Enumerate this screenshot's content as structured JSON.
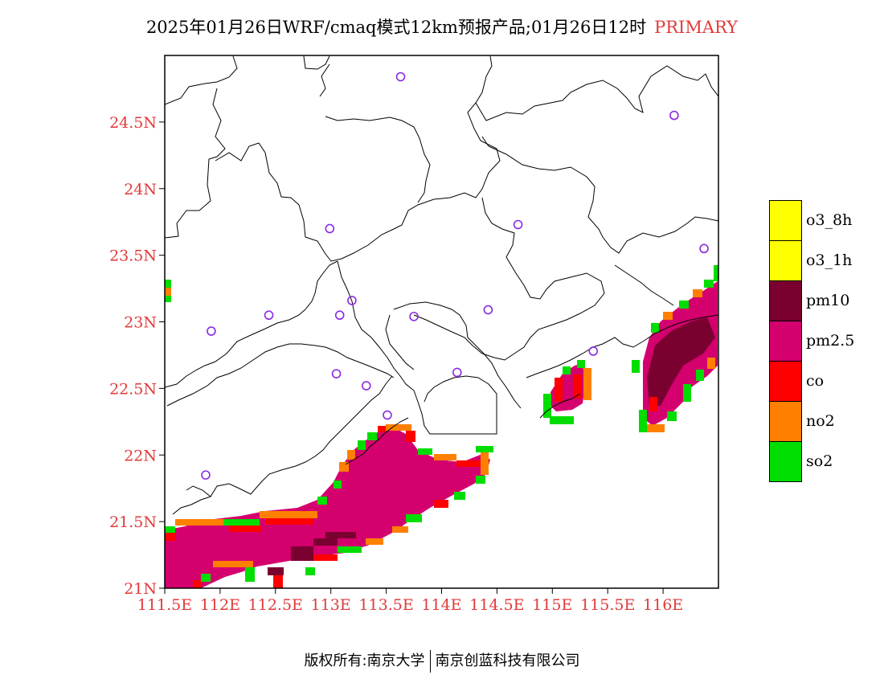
{
  "title": {
    "main": "2025年01月26日WRF/cmaq模式12km预报产品;01月26日12时",
    "tag": "PRIMARY"
  },
  "map": {
    "lon_range": [
      111.5,
      116.5
    ],
    "lat_range": [
      21.0,
      25.0
    ],
    "y_ticks": [
      {
        "lat": 24.5,
        "label": "24.5N"
      },
      {
        "lat": 24.0,
        "label": "24N"
      },
      {
        "lat": 23.5,
        "label": "23.5N"
      },
      {
        "lat": 23.0,
        "label": "23N"
      },
      {
        "lat": 22.5,
        "label": "22.5N"
      },
      {
        "lat": 22.0,
        "label": "22N"
      },
      {
        "lat": 21.5,
        "label": "21.5N"
      },
      {
        "lat": 21.0,
        "label": "21N"
      }
    ],
    "x_ticks": [
      {
        "lon": 111.5,
        "label": "111.5E"
      },
      {
        "lon": 112.0,
        "label": "112E"
      },
      {
        "lon": 112.5,
        "label": "112.5E"
      },
      {
        "lon": 113.0,
        "label": "113E"
      },
      {
        "lon": 113.5,
        "label": "113.5E"
      },
      {
        "lon": 114.0,
        "label": "114E"
      },
      {
        "lon": 114.5,
        "label": "114.5E"
      },
      {
        "lon": 115.0,
        "label": "115E"
      },
      {
        "lon": 115.5,
        "label": "115.5E"
      },
      {
        "lon": 116.0,
        "label": "116E"
      }
    ],
    "stations": [
      {
        "lon": 113.63,
        "lat": 24.84
      },
      {
        "lon": 116.1,
        "lat": 24.55
      },
      {
        "lon": 112.99,
        "lat": 23.7
      },
      {
        "lon": 114.69,
        "lat": 23.73
      },
      {
        "lon": 116.37,
        "lat": 23.55
      },
      {
        "lon": 113.19,
        "lat": 23.16
      },
      {
        "lon": 112.44,
        "lat": 23.05
      },
      {
        "lon": 113.08,
        "lat": 23.05
      },
      {
        "lon": 113.75,
        "lat": 23.04
      },
      {
        "lon": 114.42,
        "lat": 23.09
      },
      {
        "lon": 111.92,
        "lat": 22.93
      },
      {
        "lon": 115.37,
        "lat": 22.78
      },
      {
        "lon": 113.05,
        "lat": 22.61
      },
      {
        "lon": 114.14,
        "lat": 22.62
      },
      {
        "lon": 113.32,
        "lat": 22.52
      },
      {
        "lon": 113.51,
        "lat": 22.3
      },
      {
        "lon": 111.87,
        "lat": 21.85
      }
    ]
  },
  "legend": {
    "items": [
      {
        "label": "o3_8h",
        "color": "#ffff00"
      },
      {
        "label": "o3_1h",
        "color": "#ffff00"
      },
      {
        "label": "pm10",
        "color": "#7a0030"
      },
      {
        "label": "pm2.5",
        "color": "#d4006e"
      },
      {
        "label": "co",
        "color": "#ff0000"
      },
      {
        "label": "no2",
        "color": "#ff8000"
      },
      {
        "label": "so2",
        "color": "#00dd00"
      }
    ]
  },
  "footer": {
    "left": "版权所有:南京大学",
    "right": "南京创蓝科技有限公司"
  }
}
